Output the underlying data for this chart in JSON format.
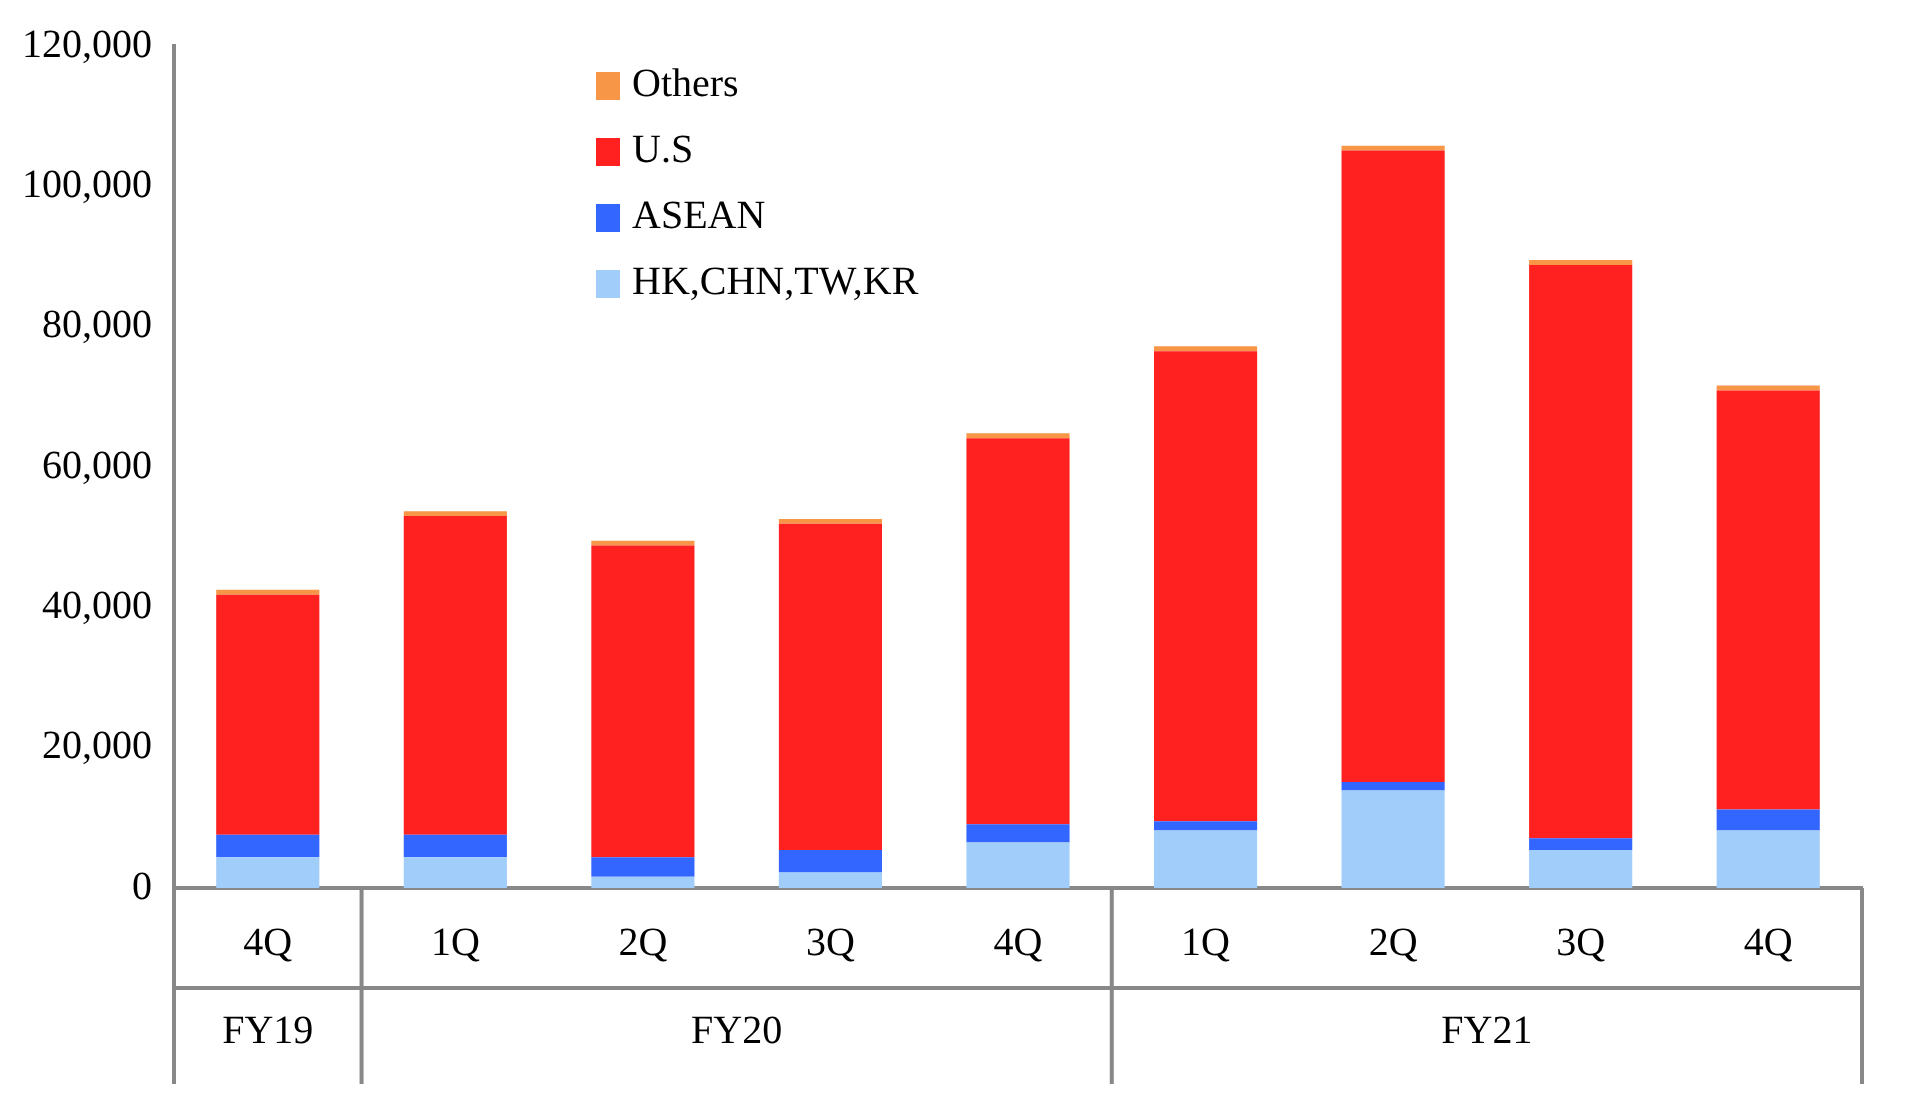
{
  "chart_data": {
    "type": "bar",
    "stacked": true,
    "categories": [
      "4Q",
      "1Q",
      "2Q",
      "3Q",
      "4Q",
      "1Q",
      "2Q",
      "3Q",
      "4Q"
    ],
    "series": [
      {
        "name": "HK,CHN,TW,KR",
        "color": "#a0cdfa",
        "values": [
          4400,
          4400,
          1600,
          2200,
          6500,
          8200,
          13900,
          5400,
          8200
        ]
      },
      {
        "name": "ASEAN",
        "color": "#3366ff",
        "values": [
          3200,
          3200,
          2800,
          3200,
          2600,
          1300,
          1200,
          1700,
          3000
        ]
      },
      {
        "name": "U.S",
        "color": "#ff2020",
        "values": [
          34200,
          45400,
          44400,
          46500,
          55000,
          67000,
          90000,
          81700,
          59700
        ]
      },
      {
        "name": "Others",
        "color": "#f79646",
        "values": [
          700,
          700,
          700,
          700,
          700,
          700,
          700,
          700,
          700
        ]
      }
    ],
    "ylim": [
      0,
      120000
    ],
    "yticks": [
      0,
      {
        "value": 20000,
        "label": "20,000"
      },
      {
        "value": 40000,
        "label": "40,000"
      },
      {
        "value": 60000,
        "label": "60,000"
      },
      {
        "value": 80000,
        "label": "80,000"
      },
      {
        "value": 100000,
        "label": "100,000"
      },
      {
        "value": 120000,
        "label": "120,000"
      }
    ],
    "annotations": [
      "FY19",
      "FY20",
      "FY21"
    ],
    "legend": "top",
    "grid": false
  }
}
